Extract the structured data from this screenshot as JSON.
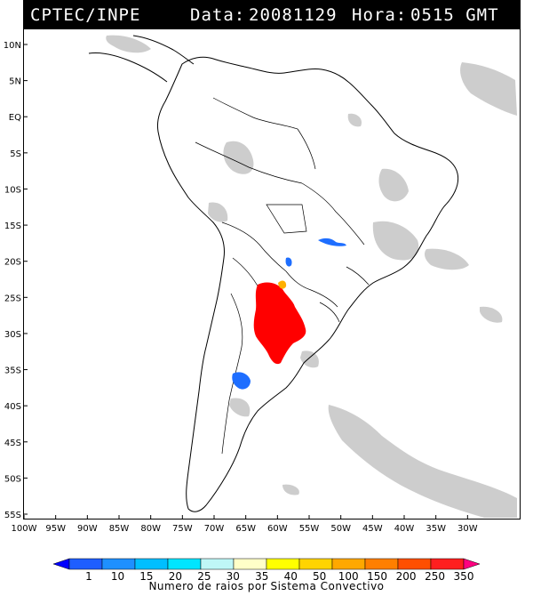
{
  "header": {
    "source": "CPTEC/INPE",
    "date_label": "Data:",
    "date_value": "20081129",
    "hour_label": "Hora:",
    "hour_value": "0515 GMT"
  },
  "map": {
    "lat_labels": [
      "10N",
      "5N",
      "EQ",
      "5S",
      "10S",
      "15S",
      "20S",
      "25S",
      "30S",
      "35S",
      "40S",
      "45S",
      "50S",
      "55S"
    ],
    "lon_labels": [
      "100W",
      "95W",
      "90W",
      "85W",
      "80W",
      "75W",
      "70W",
      "65W",
      "60W",
      "55W",
      "50W",
      "45W",
      "40W",
      "35W",
      "30W"
    ],
    "lat_values": [
      10,
      5,
      0,
      -5,
      -10,
      -15,
      -20,
      -25,
      -30,
      -35,
      -40,
      -45,
      -50,
      -55
    ],
    "lon_values": [
      -100,
      -95,
      -90,
      -85,
      -80,
      -75,
      -70,
      -65,
      -60,
      -55,
      -50,
      -45,
      -40,
      -35,
      -30
    ]
  },
  "colorbar": {
    "title": "Numero de raios por Sistema Convectivo",
    "labels": [
      "1",
      "10",
      "15",
      "20",
      "25",
      "30",
      "35",
      "40",
      "50",
      "100",
      "150",
      "200",
      "250",
      "350"
    ],
    "colors": [
      "#0000ff",
      "#1e5eff",
      "#1e90ff",
      "#00bfff",
      "#00e5ff",
      "#bff7f7",
      "#ffffc8",
      "#ffff00",
      "#ffd400",
      "#ffa800",
      "#ff7f00",
      "#ff4f00",
      "#ff1f1f",
      "#ff0080"
    ]
  },
  "convective_systems": [
    {
      "lon": -63.5,
      "lat": -29.5,
      "color": "#ff0000"
    },
    {
      "lon": -61.5,
      "lat": -25.3,
      "color": "#ffb000"
    },
    {
      "lon": -67.8,
      "lat": -36.0,
      "color": "#1e6eff"
    },
    {
      "lon": -62.0,
      "lat": -20.0,
      "color": "#1e6eff"
    },
    {
      "lon": -54.5,
      "lat": -16.5,
      "color": "#1e6eff"
    }
  ]
}
